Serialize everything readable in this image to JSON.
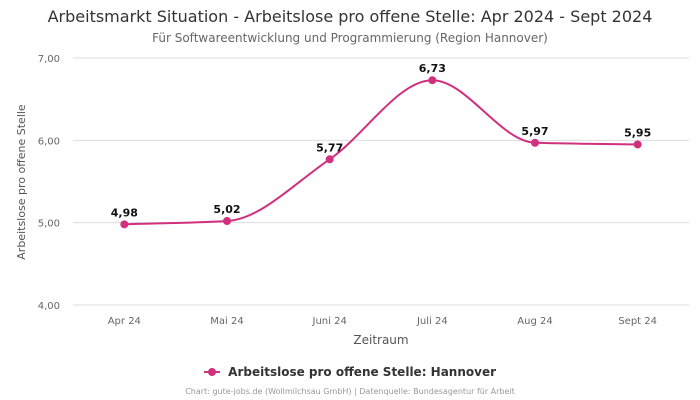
{
  "colors": {
    "series": "#d1307e",
    "grid": "#dddddd",
    "axis": "#666666"
  },
  "chart_data": {
    "type": "line",
    "title": "Arbeitsmarkt Situation - Arbeitslose pro offene Stelle: Apr 2024 - Sept 2024",
    "subtitle": "Für Softwareentwicklung und Programmierung (Region Hannover)",
    "xlabel": "Zeitraum",
    "ylabel": "Arbeitslose pro offene Stelle",
    "categories": [
      "Apr 24",
      "Mai 24",
      "Juni 24",
      "Juli 24",
      "Aug 24",
      "Sept 24"
    ],
    "ylim": [
      4,
      7
    ],
    "yticks": [
      "4,00",
      "5,00",
      "6,00",
      "7,00"
    ],
    "grid": true,
    "legend_position": "bottom",
    "series": [
      {
        "name": "Arbeitslose pro offene Stelle: Hannover",
        "values": [
          4.98,
          5.02,
          5.77,
          6.73,
          5.97,
          5.95
        ],
        "labels": [
          "4,98",
          "5,02",
          "5,77",
          "6,73",
          "5,97",
          "5,95"
        ]
      }
    ],
    "footer": "Chart: gute-jobs.de (Wollmilchsau GmbH) | Datenquelle: Bundesagentur für Arbeit"
  }
}
